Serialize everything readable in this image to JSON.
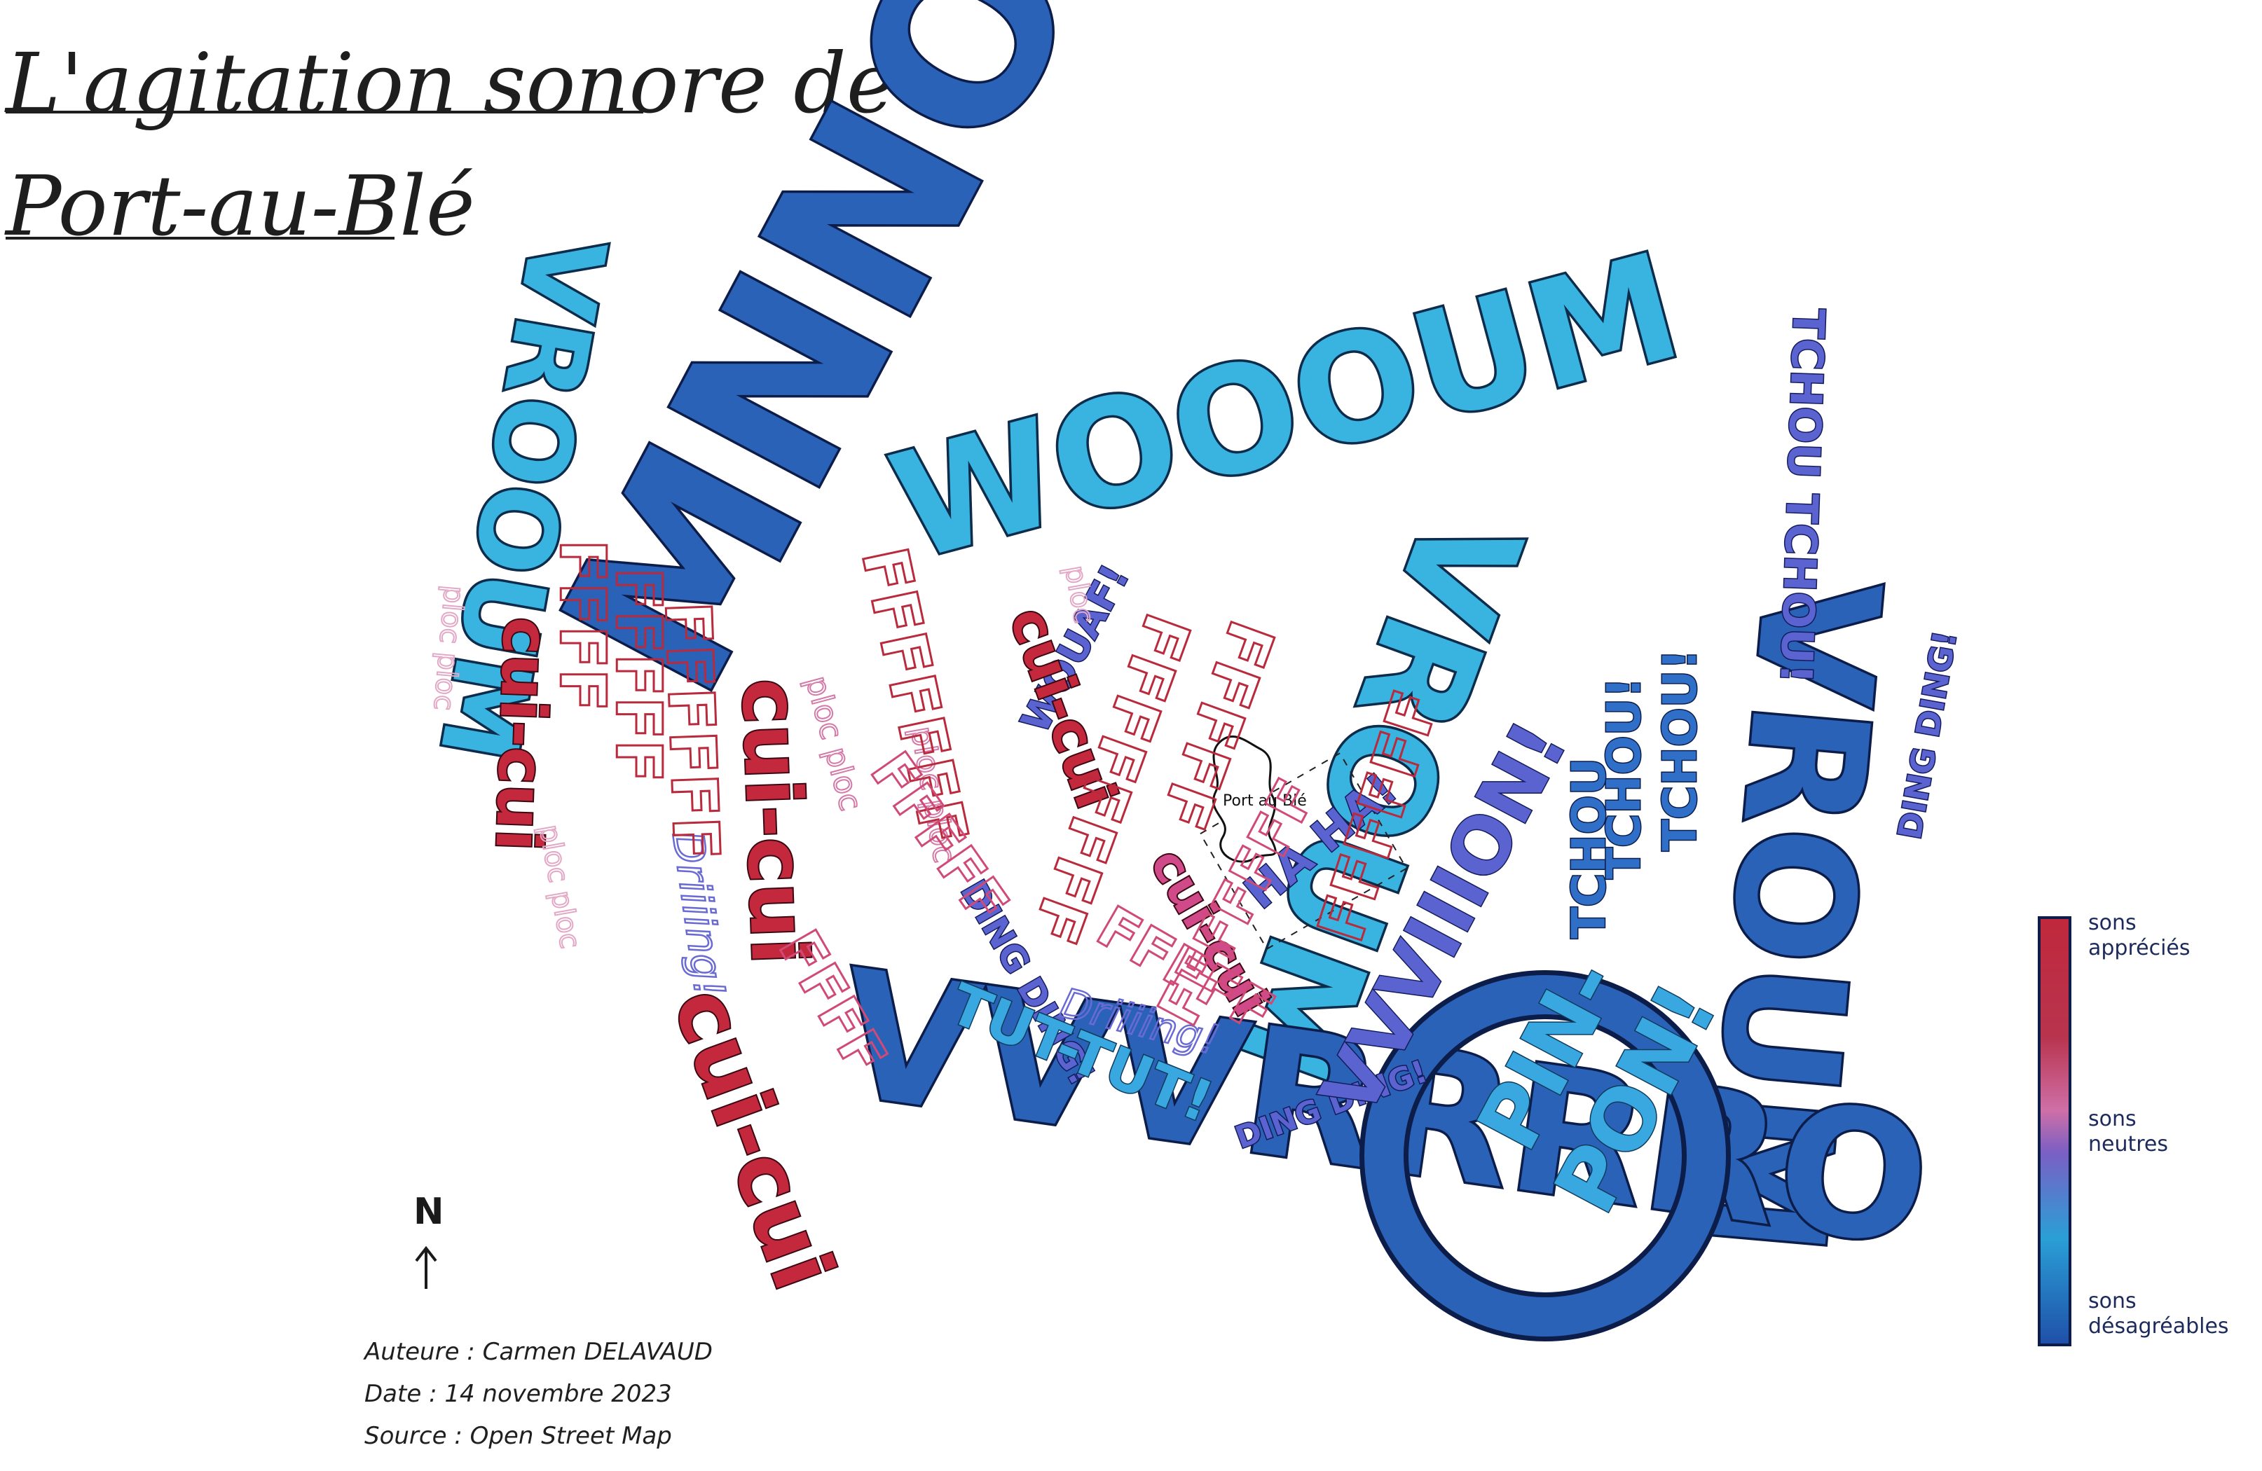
{
  "title": {
    "line1": "L'agitation sonore de",
    "line2": "Port-au-Blé"
  },
  "place_label": "Port au Blé",
  "north_label": "N",
  "legend": {
    "top": "sons appréciés",
    "middle": "sons neutres",
    "bottom": "sons désagréables",
    "colors": [
      "#c0283c",
      "#cf4f86",
      "#7a5fc4",
      "#2a9fd6",
      "#1f4fa8"
    ]
  },
  "credits": {
    "author": "Auteure : Carmen DELAVAUD",
    "date": "Date : 14 novembre 2023",
    "source": "Source : Open Street Map"
  },
  "sounds": {
    "mnnooo": "MNNOOOIIIIIIIWWW",
    "vrooum": "VROOUM",
    "wooom": "WOOOUM",
    "vroum_right": "VROUM",
    "vrooum_bottom": "VVVRRRRO",
    "tchou_top": "TCHOU TCHOU!",
    "tchou_mid1": "TCHOU!",
    "tchou_mid2": "TCHOU!",
    "tchou_low": "TCHOU",
    "ding1": "DING DING!",
    "ding2": "DING DING!",
    "ding3": "DING DING!",
    "pinpon1": "PIN-",
    "pinpon2": "PON!",
    "vvvion": "VVVIIION!",
    "tuttut": "TUT-TUT!",
    "driing1": "Driiiing!",
    "driing2": "Driiiing!",
    "haha": "HA HA!",
    "wouaf": "WOUAF!",
    "cuicui1": "cui-cui",
    "cuicui2": "cui-cui",
    "cuicui3": "cui-cui",
    "cuicui4": "cui-cui",
    "cuicui5": "cui-cui",
    "ploc1": "ploc ploc",
    "ploc2": "ploc ploc",
    "ploc3": "ploc ploc",
    "ploc4": "ploc ploc",
    "ploc5": "ploc",
    "fff1": "FFFF",
    "fff2": "FFFFF",
    "fff3": "FFFFFF",
    "fff4": "FFFFFFF",
    "fff5": "FFFFFFFF",
    "fff6": "FFFF",
    "fff7": "FFFFF",
    "fff8": "FFFFF",
    "fff9": "FFFFFFF",
    "fff10": "FFFFFF",
    "fff11": "FFFFF"
  }
}
